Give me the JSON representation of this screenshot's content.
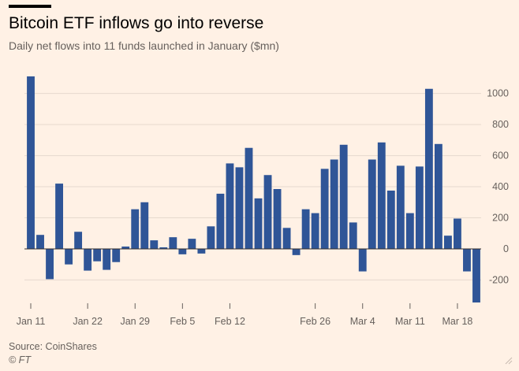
{
  "header": {
    "title": "Bitcoin ETF inflows go into reverse",
    "subtitle": "Daily net flows into 11 funds launched in January ($mn)"
  },
  "footer": {
    "source": "Source: CoinShares",
    "credit": "© FT"
  },
  "colors": {
    "background": "#FFF1E5",
    "bar": "#2F5597",
    "grid": "#E6D9CE",
    "zero_line": "#33302E",
    "text": "#33302E"
  },
  "icons": [
    "resize-handle-icon"
  ],
  "chart_data": {
    "type": "bar",
    "title": "Bitcoin ETF inflows go into reverse",
    "subtitle": "Daily net flows into 11 funds launched in January ($mn)",
    "unit": "$mn",
    "grid": true,
    "y_axis_position": "right",
    "ylim": [
      -350,
      1120
    ],
    "y_ticks": [
      -200,
      0,
      200,
      400,
      600,
      800,
      1000
    ],
    "x_tick_labels": [
      {
        "label": "Jan 11",
        "bar_index": 0
      },
      {
        "label": "Jan 22",
        "bar_index": 6
      },
      {
        "label": "Jan 29",
        "bar_index": 11
      },
      {
        "label": "Feb 5",
        "bar_index": 16
      },
      {
        "label": "Feb 12",
        "bar_index": 21
      },
      {
        "label": "Feb 26",
        "bar_index": 30
      },
      {
        "label": "Mar 4",
        "bar_index": 35
      },
      {
        "label": "Mar 11",
        "bar_index": 40
      },
      {
        "label": "Mar 18",
        "bar_index": 45
      }
    ],
    "values": [
      1110,
      90,
      -195,
      420,
      -100,
      110,
      -140,
      -80,
      -135,
      -85,
      15,
      255,
      300,
      55,
      10,
      75,
      -35,
      65,
      -30,
      145,
      355,
      550,
      525,
      650,
      325,
      475,
      385,
      135,
      -40,
      255,
      230,
      515,
      575,
      670,
      170,
      -145,
      575,
      685,
      375,
      535,
      230,
      530,
      1030,
      675,
      85,
      195,
      -145,
      -345
    ]
  }
}
